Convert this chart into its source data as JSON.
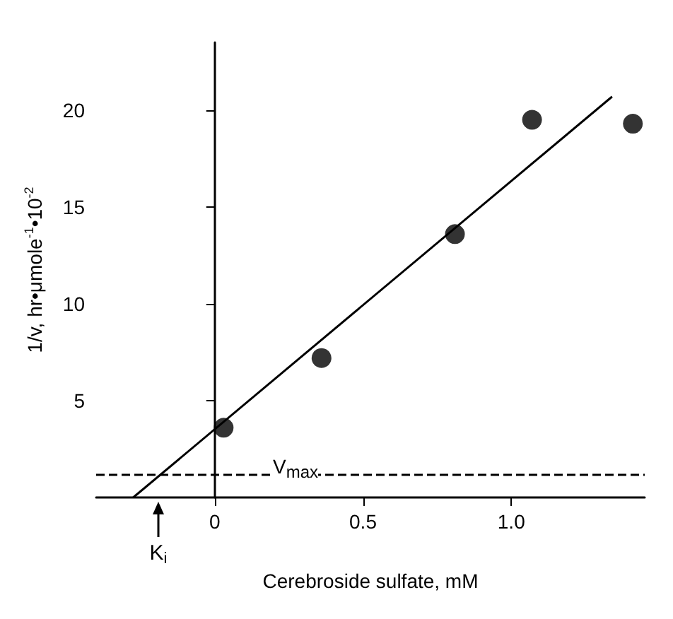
{
  "chart_data": {
    "type": "scatter",
    "xlabel": "Cerebroside sulfate, mM",
    "ylabel": "1/v, hr•μmole$^{-1}$•10$^{-2}$",
    "x": [
      0.03,
      0.36,
      0.81,
      1.07,
      1.41
    ],
    "series": [
      {
        "color": "#000000",
        "values": [
          3.6,
          7.2,
          13.6,
          19.5,
          19.3
        ]
      },
      {
        "type": "line",
        "color": "#000000",
        "x": [
          -0.275,
          1.34
        ],
        "values": [
          0,
          20.7
        ],
        "marker": "none",
        "line_style": "solid"
      }
    ],
    "marker": "circle",
    "xlim": [
      -0.4,
      1.45
    ],
    "xticks": [
      0,
      0.5,
      {
        "value": 1,
        "label": "1.0"
      }
    ],
    "ylim": [
      0,
      23.5
    ],
    "yticks": [
      5,
      10,
      15,
      20
    ],
    "ref_lines": [
      {
        "axis": "y",
        "value": 1.15,
        "label": "V$_{max}$",
        "line_style": "dashed",
        "color": "#000000"
      }
    ],
    "annotations": [
      "K$_{i}$"
    ]
  }
}
